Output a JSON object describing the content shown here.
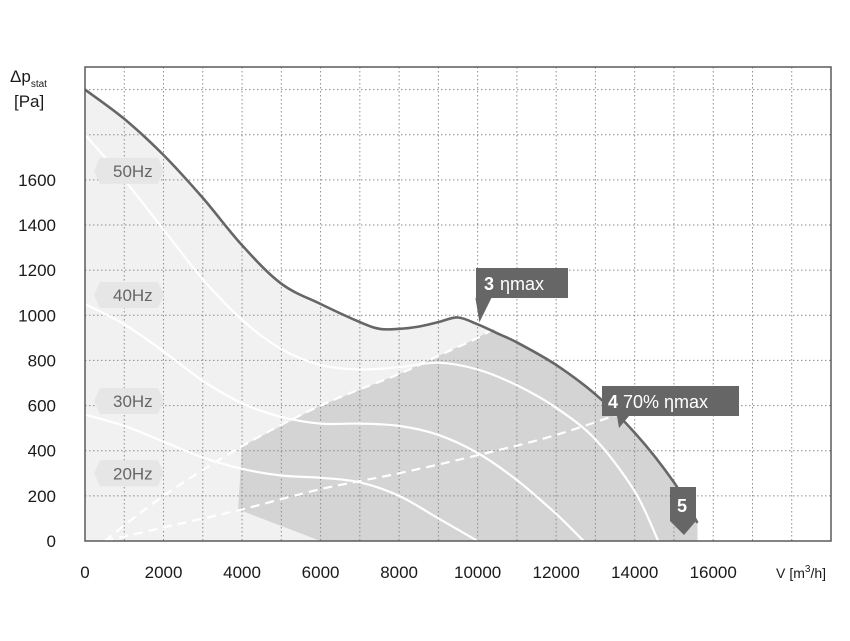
{
  "chart_data": {
    "type": "line",
    "y_axis": {
      "label_main": "Δp",
      "label_sub": "stat",
      "unit": "[Pa]",
      "ylim": [
        0,
        2100
      ],
      "ticks": [
        0,
        200,
        400,
        600,
        800,
        1000,
        1200,
        1400,
        1600
      ]
    },
    "x_axis": {
      "label_main": "V",
      "unit_pre": "[m",
      "unit_sup": "3",
      "unit_post": "/h]",
      "xlim": [
        0,
        19000
      ],
      "ticks": [
        0,
        2000,
        4000,
        6000,
        8000,
        10000,
        12000,
        14000,
        16000
      ]
    },
    "grid": true,
    "series": [
      {
        "name": "50Hz",
        "points": [
          [
            0,
            2000
          ],
          [
            1000,
            1870
          ],
          [
            2000,
            1710
          ],
          [
            3000,
            1520
          ],
          [
            4000,
            1310
          ],
          [
            5000,
            1140
          ],
          [
            6000,
            1050
          ],
          [
            7000,
            970
          ],
          [
            7500,
            940
          ],
          [
            8000,
            940
          ],
          [
            8500,
            950
          ],
          [
            9000,
            970
          ],
          [
            9500,
            990
          ],
          [
            10000,
            960
          ],
          [
            10500,
            920
          ],
          [
            11000,
            880
          ],
          [
            12000,
            780
          ],
          [
            13000,
            650
          ],
          [
            14000,
            480
          ],
          [
            15000,
            260
          ],
          [
            15600,
            80
          ]
        ]
      },
      {
        "name": "40Hz",
        "points": [
          [
            0,
            1800
          ],
          [
            1000,
            1600
          ],
          [
            2000,
            1380
          ],
          [
            3000,
            1160
          ],
          [
            4000,
            980
          ],
          [
            5000,
            850
          ],
          [
            6000,
            780
          ],
          [
            7000,
            760
          ],
          [
            8000,
            770
          ],
          [
            9000,
            790
          ],
          [
            10000,
            760
          ],
          [
            11000,
            690
          ],
          [
            12000,
            590
          ],
          [
            13000,
            450
          ],
          [
            14000,
            220
          ],
          [
            14600,
            0
          ]
        ]
      },
      {
        "name": "30Hz",
        "points": [
          [
            0,
            1050
          ],
          [
            1000,
            960
          ],
          [
            2000,
            840
          ],
          [
            3000,
            710
          ],
          [
            4000,
            610
          ],
          [
            5000,
            550
          ],
          [
            6000,
            520
          ],
          [
            7000,
            520
          ],
          [
            8000,
            510
          ],
          [
            9000,
            470
          ],
          [
            10000,
            390
          ],
          [
            11000,
            270
          ],
          [
            12000,
            120
          ],
          [
            12700,
            0
          ]
        ]
      },
      {
        "name": "20Hz",
        "points": [
          [
            0,
            560
          ],
          [
            1000,
            510
          ],
          [
            2000,
            440
          ],
          [
            3000,
            370
          ],
          [
            4000,
            320
          ],
          [
            5000,
            290
          ],
          [
            6000,
            280
          ],
          [
            7000,
            260
          ],
          [
            8000,
            200
          ],
          [
            9000,
            100
          ],
          [
            10000,
            0
          ]
        ]
      },
      {
        "name": "lower-dashed",
        "points": [
          [
            500,
            0
          ],
          [
            2000,
            60
          ],
          [
            4000,
            140
          ],
          [
            6000,
            230
          ],
          [
            8000,
            300
          ],
          [
            10000,
            380
          ],
          [
            12000,
            470
          ],
          [
            14000,
            590
          ],
          [
            15300,
            700
          ]
        ]
      },
      {
        "name": "upper-dashed",
        "points": [
          [
            500,
            0
          ],
          [
            2000,
            200
          ],
          [
            4000,
            420
          ],
          [
            6000,
            600
          ],
          [
            8000,
            740
          ],
          [
            9000,
            820
          ],
          [
            10000,
            900
          ],
          [
            10400,
            940
          ]
        ]
      }
    ],
    "annotations": [
      {
        "num": "3",
        "text": "ηmax",
        "x": 10300,
        "y": 960
      },
      {
        "num": "4",
        "text": "70% ηmax",
        "x": 14300,
        "y": 540
      },
      {
        "num": "5",
        "text": "",
        "x": 15400,
        "y": 75
      }
    ],
    "series_labels": [
      "50Hz",
      "40Hz",
      "30Hz",
      "20Hz"
    ]
  }
}
